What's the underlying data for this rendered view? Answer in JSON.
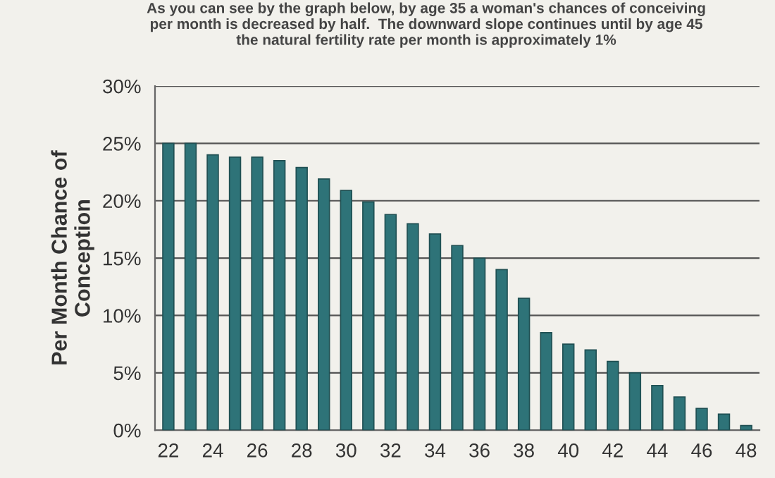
{
  "chart_data": {
    "type": "bar",
    "title": "As you can see by the graph below, by age 35 a woman's chances of conceiving\nper month is decreased by half.  The downward slope continues until by age 45\nthe natural fertility rate per month is approximately 1%",
    "ylabel": "Per Month Chance of\nConception",
    "categories": [
      "22",
      null,
      "24",
      null,
      "26",
      null,
      "28",
      null,
      "30",
      null,
      "32",
      null,
      "34",
      null,
      "36",
      null,
      "38",
      null,
      "40",
      null,
      "42",
      null,
      "44",
      null,
      "46",
      null,
      "48"
    ],
    "values": [
      25,
      25,
      24,
      23.8,
      23.8,
      23.5,
      22.9,
      21.9,
      20.9,
      19.9,
      18.8,
      18,
      17.1,
      16.1,
      15,
      14,
      11.5,
      8.5,
      7.5,
      7,
      6,
      5,
      3.9,
      2.9,
      1.9,
      1.4,
      0.4
    ],
    "color": "#2e7378",
    "ylim": [
      0,
      30
    ],
    "yticks": [
      {
        "value": 0,
        "label": "0%"
      },
      {
        "value": 5,
        "label": "5%"
      },
      {
        "value": 10,
        "label": "10%"
      },
      {
        "value": 15,
        "label": "15%"
      },
      {
        "value": 20,
        "label": "20%"
      },
      {
        "value": 25,
        "label": "25%"
      },
      {
        "value": 30,
        "label": "30%"
      }
    ],
    "grid": "y"
  }
}
